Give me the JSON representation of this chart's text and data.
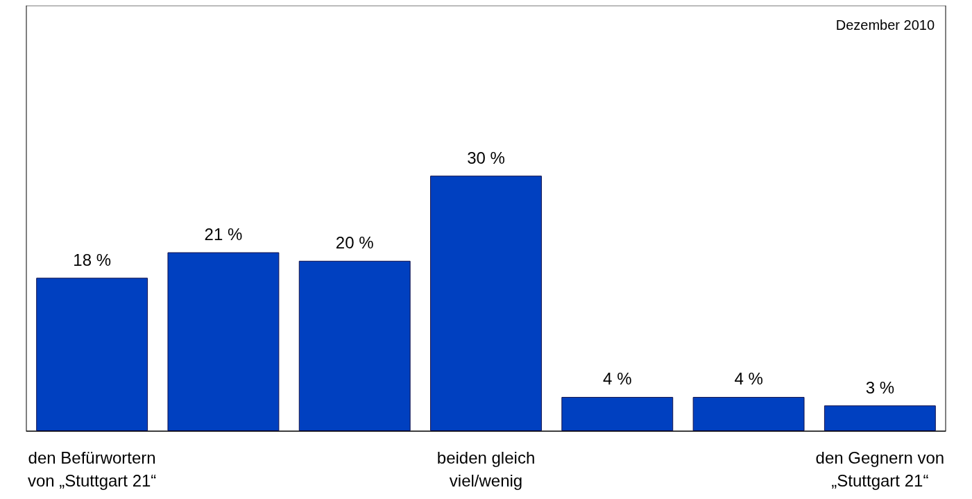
{
  "chart_data": {
    "type": "bar",
    "categories": [
      "den Befürwortern\nvon „Stuttgart 21“",
      null,
      null,
      "beiden gleich\nviel/wenig",
      null,
      null,
      "den Gegnern von\n„Stuttgart 21“"
    ],
    "values": [
      18,
      21,
      20,
      30,
      4,
      4,
      3
    ],
    "value_labels": [
      "18 %",
      "21 %",
      "20 %",
      "30 %",
      "4 %",
      "4 %",
      "3 %"
    ],
    "color": "#0040c0",
    "ylim": [
      0,
      50
    ],
    "annotations": [
      "Dezember 2010"
    ]
  }
}
